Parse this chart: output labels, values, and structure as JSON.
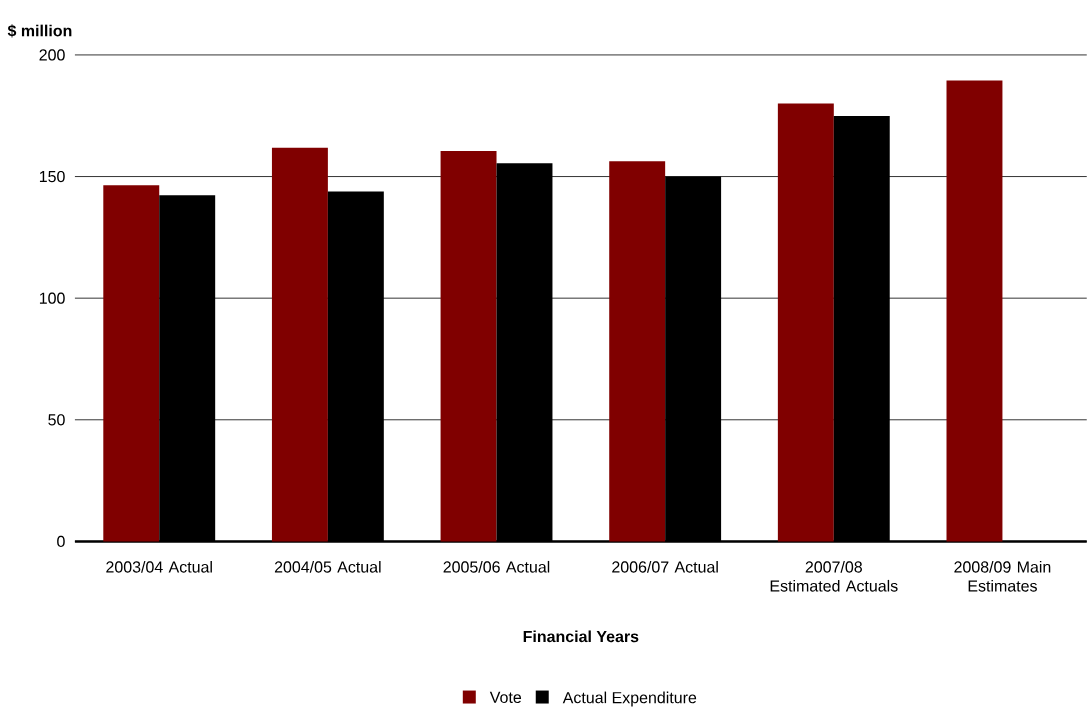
{
  "chart_data": {
    "type": "bar",
    "ylabel": "$ million",
    "xlabel": "Financial Years",
    "categories": [
      "2003/04 Actual",
      "2004/05 Actual",
      "2005/06 Actual",
      "2006/07 Actual",
      "2007/08 Estimated Actuals",
      "2008/09 Main Estimates"
    ],
    "series": [
      {
        "name": "Vote",
        "color": "#800000",
        "values": [
          146.4,
          161.8,
          160.5,
          156.3,
          180.0,
          189.5
        ]
      },
      {
        "name": "Actual Expenditure",
        "color": "#000000",
        "values": [
          142.3,
          143.9,
          155.5,
          150.0,
          174.9,
          null
        ]
      }
    ],
    "ylim": [
      0,
      200
    ],
    "yticks": [
      0,
      50,
      100,
      150,
      200
    ],
    "grid": "y",
    "legend": "bottom"
  }
}
